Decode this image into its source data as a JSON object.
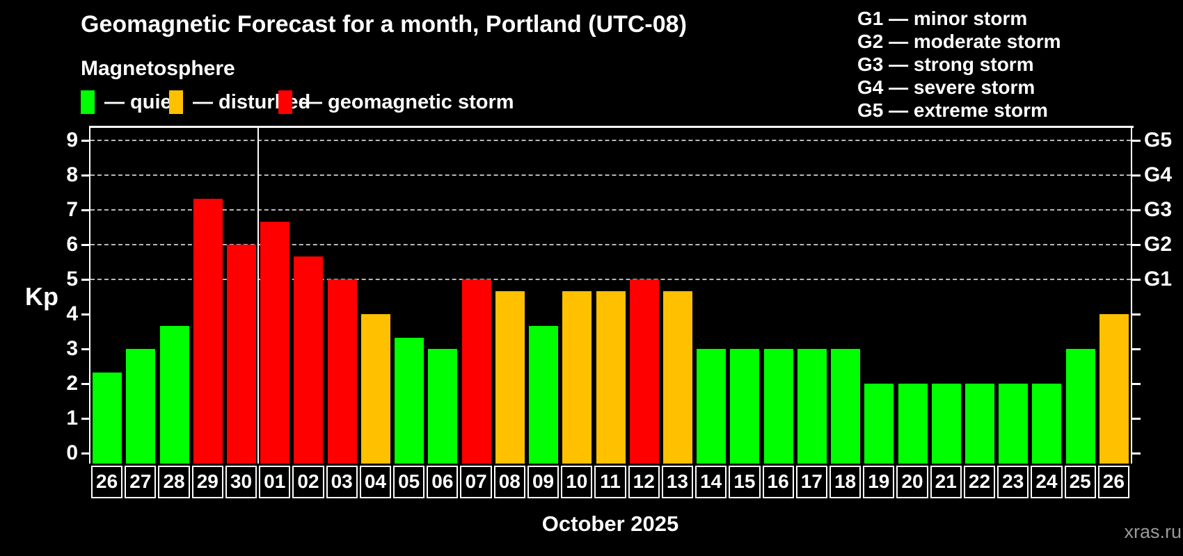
{
  "header": {
    "title": "Geomagnetic Forecast for a month, Portland (UTC-08)",
    "subtitle": "Magnetosphere"
  },
  "legend": {
    "items": [
      {
        "state": "quiet",
        "label": "— quiet"
      },
      {
        "state": "disturbed",
        "label": "— disturbed"
      },
      {
        "state": "storm",
        "label": "— geomagnetic storm"
      }
    ]
  },
  "g_legend": {
    "lines": [
      "G1 — minor storm",
      "G2 — moderate storm",
      "G3 — strong storm",
      "G4 — severe storm",
      "G5 — extreme storm"
    ]
  },
  "footer": {
    "month_label": "October 2025",
    "watermark": "xras.ru"
  },
  "chart_data": {
    "type": "bar",
    "title": "Geomagnetic Forecast for a month, Portland (UTC-08)",
    "subtitle": "Magnetosphere",
    "xlabel": "October 2025",
    "ylabel": "Kp",
    "ylim": [
      0,
      9
    ],
    "yticks": [
      0,
      1,
      2,
      3,
      4,
      5,
      6,
      7,
      8,
      9
    ],
    "gridlines_at": [
      5,
      6,
      7,
      8,
      9
    ],
    "grid_style": "dashed",
    "legend_position": "top",
    "right_axis": [
      {
        "label": "G1",
        "kp": 5
      },
      {
        "label": "G2",
        "kp": 6
      },
      {
        "label": "G3",
        "kp": 7
      },
      {
        "label": "G4",
        "kp": 8
      },
      {
        "label": "G5",
        "kp": 9
      }
    ],
    "series_colors": {
      "quiet": "#00ff00",
      "disturbed": "#ffc000",
      "storm": "#ff0000"
    },
    "month_separator_after_index": 4,
    "bars": [
      {
        "day": "26",
        "kp": 2.33,
        "state": "quiet"
      },
      {
        "day": "27",
        "kp": 3.0,
        "state": "quiet"
      },
      {
        "day": "28",
        "kp": 3.67,
        "state": "quiet"
      },
      {
        "day": "29",
        "kp": 7.33,
        "state": "storm"
      },
      {
        "day": "30",
        "kp": 6.0,
        "state": "storm"
      },
      {
        "day": "01",
        "kp": 6.67,
        "state": "storm"
      },
      {
        "day": "02",
        "kp": 5.67,
        "state": "storm"
      },
      {
        "day": "03",
        "kp": 5.0,
        "state": "storm"
      },
      {
        "day": "04",
        "kp": 4.0,
        "state": "disturbed"
      },
      {
        "day": "05",
        "kp": 3.33,
        "state": "quiet"
      },
      {
        "day": "06",
        "kp": 3.0,
        "state": "quiet"
      },
      {
        "day": "07",
        "kp": 5.0,
        "state": "storm"
      },
      {
        "day": "08",
        "kp": 4.67,
        "state": "disturbed"
      },
      {
        "day": "09",
        "kp": 3.67,
        "state": "quiet"
      },
      {
        "day": "10",
        "kp": 4.67,
        "state": "disturbed"
      },
      {
        "day": "11",
        "kp": 4.67,
        "state": "disturbed"
      },
      {
        "day": "12",
        "kp": 5.0,
        "state": "storm"
      },
      {
        "day": "13",
        "kp": 4.67,
        "state": "disturbed"
      },
      {
        "day": "14",
        "kp": 3.0,
        "state": "quiet"
      },
      {
        "day": "15",
        "kp": 3.0,
        "state": "quiet"
      },
      {
        "day": "16",
        "kp": 3.0,
        "state": "quiet"
      },
      {
        "day": "17",
        "kp": 3.0,
        "state": "quiet"
      },
      {
        "day": "18",
        "kp": 3.0,
        "state": "quiet"
      },
      {
        "day": "19",
        "kp": 2.0,
        "state": "quiet"
      },
      {
        "day": "20",
        "kp": 2.0,
        "state": "quiet"
      },
      {
        "day": "21",
        "kp": 2.0,
        "state": "quiet"
      },
      {
        "day": "22",
        "kp": 2.0,
        "state": "quiet"
      },
      {
        "day": "23",
        "kp": 2.0,
        "state": "quiet"
      },
      {
        "day": "24",
        "kp": 2.0,
        "state": "quiet"
      },
      {
        "day": "25",
        "kp": 3.0,
        "state": "quiet"
      },
      {
        "day": "26",
        "kp": 4.0,
        "state": "disturbed"
      }
    ]
  }
}
